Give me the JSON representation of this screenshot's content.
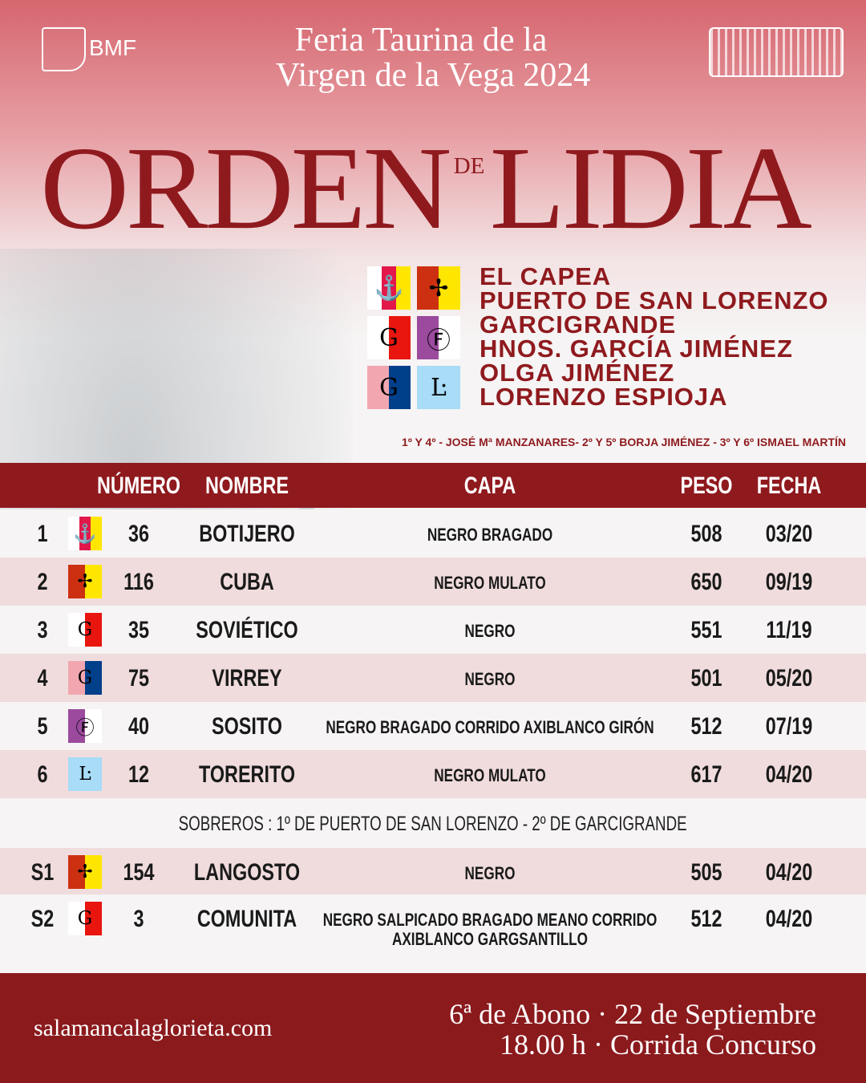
{
  "header": {
    "logo_text": "BMF",
    "feria_line1": "Feria Taurina de la",
    "feria_line2": "Virgen de la Vega 2024",
    "title_left": "ORDEN",
    "title_de": "DE",
    "title_right": "LIDIA"
  },
  "ganaderias": [
    {
      "name": "EL CAPEA",
      "stripes": [
        "#ffffff",
        "#e2184a",
        "#ffe600"
      ],
      "glyph": "⚓"
    },
    {
      "name": "PUERTO DE SAN LORENZO",
      "stripes": [
        "#cc3010",
        "#ffe600"
      ],
      "glyph": "✢"
    },
    {
      "name": "GARCIGRANDE",
      "stripes": [
        "#ffffff",
        "#e8160e"
      ],
      "glyph": "G"
    },
    {
      "name": "HNOS. GARCÍA JIMÉNEZ",
      "stripes": [
        "#9b4a9e",
        "#ffffff"
      ],
      "glyph": "Ⓕ"
    },
    {
      "name": "OLGA JIMÉNEZ",
      "stripes": [
        "#f2a7b0",
        "#003f8a"
      ],
      "glyph": "G"
    },
    {
      "name": "LORENZO ESPIOJA",
      "stripes": [
        "#a8dcf7"
      ],
      "glyph": "Ŀ"
    }
  ],
  "matadores": "1º Y 4º - JOSÉ Mª MANZANARES- 2º Y 5º BORJA JIMÉNEZ - 3º Y 6º ISMAEL MARTÍN",
  "table": {
    "headers": {
      "numero": "NÚMERO",
      "nombre": "NOMBRE",
      "capa": "CAPA",
      "peso": "PESO",
      "fecha": "FECHA"
    },
    "rows": [
      {
        "orden": "1",
        "gan": 0,
        "numero": "36",
        "nombre": "BOTIJERO",
        "capa": "NEGRO BRAGADO",
        "peso": "508",
        "fecha": "03/20"
      },
      {
        "orden": "2",
        "gan": 1,
        "numero": "116",
        "nombre": "CUBA",
        "capa": "NEGRO MULATO",
        "peso": "650",
        "fecha": "09/19"
      },
      {
        "orden": "3",
        "gan": 2,
        "numero": "35",
        "nombre": "SOVIÉTICO",
        "capa": "NEGRO",
        "peso": "551",
        "fecha": "11/19"
      },
      {
        "orden": "4",
        "gan": 4,
        "numero": "75",
        "nombre": "VIRREY",
        "capa": "NEGRO",
        "peso": "501",
        "fecha": "05/20"
      },
      {
        "orden": "5",
        "gan": 3,
        "numero": "40",
        "nombre": "SOSITO",
        "capa": "NEGRO BRAGADO CORRIDO AXIBLANCO GIRÓN",
        "peso": "512",
        "fecha": "07/19"
      },
      {
        "orden": "6",
        "gan": 5,
        "numero": "12",
        "nombre": "TORERITO",
        "capa": "NEGRO MULATO",
        "peso": "617",
        "fecha": "04/20"
      }
    ],
    "sobreros_label": "SOBREROS : 1º DE PUERTO DE SAN LORENZO - 2º DE GARCIGRANDE",
    "sobreros": [
      {
        "orden": "S1",
        "gan": 1,
        "numero": "154",
        "nombre": "LANGOSTO",
        "capa": "NEGRO",
        "peso": "505",
        "fecha": "04/20"
      },
      {
        "orden": "S2",
        "gan": 2,
        "numero": "3",
        "nombre": "COMUNITA",
        "capa": "NEGRO SALPICADO BRAGADO MEANO CORRIDO\nAXIBLANCO GARGSANTILLO",
        "peso": "512",
        "fecha": "04/20"
      }
    ]
  },
  "footer": {
    "website": "salamancalaglorieta.com",
    "line1": "6ª de Abono · 22 de Septiembre",
    "line2": "18.00 h · Corrida Concurso"
  },
  "colors": {
    "brand_red": "#8f1a1e",
    "row_pink": "#f0dcdd"
  }
}
